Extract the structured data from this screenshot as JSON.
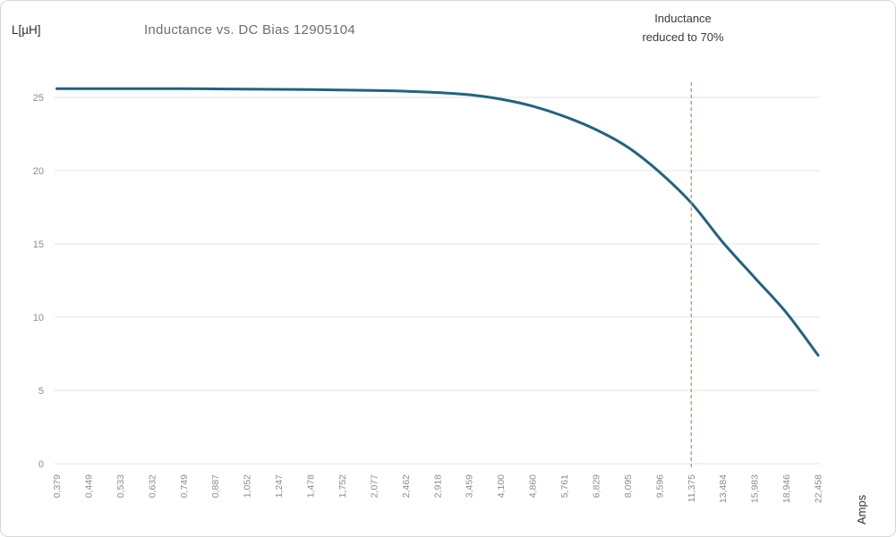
{
  "header": {
    "y_axis_unit_label": "L[µH]",
    "title": "Inductance vs. DC Bias 12905104",
    "annotation_line1": "Inductance",
    "annotation_line2": "reduced to 70%"
  },
  "x_axis_unit_label": "Amps",
  "colors": {
    "curve": "#20647f",
    "threshold_line": "#bf8b54",
    "gridline": "#e3e3e3",
    "tick_label": "#8c8c8c",
    "title_text": "#6e6e6e",
    "annotation_text": "#3a3a3a",
    "frame_border": "#d8d8d8"
  },
  "chart_data": {
    "type": "line",
    "title": "Inductance vs. DC Bias 12905104",
    "xlabel": "Amps",
    "ylabel": "L[µH]",
    "grid": "horizontal",
    "legend": "none",
    "y_ticks": [
      0,
      5,
      10,
      15,
      20,
      25
    ],
    "ylim": [
      0,
      27
    ],
    "x_tick_labels": [
      "0,379",
      "0,449",
      "0,533",
      "0,632",
      "0,749",
      "0,887",
      "1,052",
      "1,247",
      "1,478",
      "1,752",
      "2,077",
      "2,462",
      "2,918",
      "3,459",
      "4,100",
      "4,860",
      "5,761",
      "6,829",
      "8,095",
      "9,596",
      "11,375",
      "13,484",
      "15,983",
      "18,946",
      "22,458"
    ],
    "x_values": [
      0.379,
      0.449,
      0.533,
      0.632,
      0.749,
      0.887,
      1.052,
      1.247,
      1.478,
      1.752,
      2.077,
      2.462,
      2.918,
      3.459,
      4.1,
      4.86,
      5.761,
      6.829,
      8.095,
      9.596,
      11.375,
      13.484,
      15.983,
      18.946,
      22.458
    ],
    "series": [
      {
        "name": "Inductance",
        "color": "#20647f",
        "values": [
          25.6,
          25.6,
          25.6,
          25.6,
          25.6,
          25.58,
          25.57,
          25.55,
          25.53,
          25.5,
          25.47,
          25.42,
          25.33,
          25.18,
          24.88,
          24.4,
          23.7,
          22.8,
          21.6,
          19.9,
          17.8,
          15.1,
          12.7,
          10.3,
          7.4
        ]
      }
    ],
    "annotation": {
      "text": "Inductance reduced to 70%",
      "x_tick_label": "11,375",
      "line_style": "dashed",
      "line_color": "#bf8b54"
    }
  }
}
